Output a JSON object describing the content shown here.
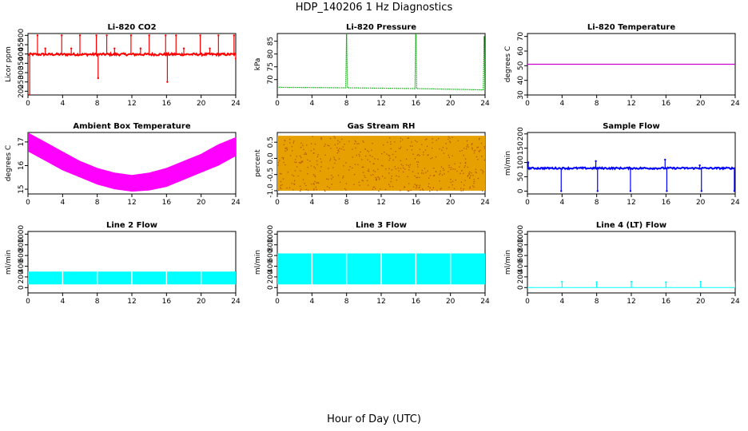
{
  "title": "HDP_140206  1 Hz Diagnostics",
  "xlabel": "Hour of Day (UTC)",
  "chart_data": [
    {
      "type": "line",
      "title": "Li-820 CO2",
      "ylabel": "Licor ppm",
      "color": "#ff0000",
      "xlim": [
        0,
        24
      ],
      "ylim": [
        180,
        510
      ],
      "xticks": [
        0,
        4,
        8,
        12,
        16,
        20,
        24
      ],
      "yticks": [
        200,
        250,
        300,
        350,
        400,
        450,
        500
      ],
      "baseline": 398,
      "noise": 12,
      "spikes": [
        {
          "x": 0.2,
          "y": 180
        },
        {
          "x": 1.1,
          "y": 500
        },
        {
          "x": 2.0,
          "y": 430
        },
        {
          "x": 3.9,
          "y": 500
        },
        {
          "x": 5.0,
          "y": 430
        },
        {
          "x": 6.0,
          "y": 500
        },
        {
          "x": 7.9,
          "y": 500
        },
        {
          "x": 8.1,
          "y": 270
        },
        {
          "x": 9.1,
          "y": 500
        },
        {
          "x": 10.0,
          "y": 430
        },
        {
          "x": 11.9,
          "y": 500
        },
        {
          "x": 13.0,
          "y": 430
        },
        {
          "x": 14.0,
          "y": 500
        },
        {
          "x": 15.9,
          "y": 500
        },
        {
          "x": 16.1,
          "y": 250
        },
        {
          "x": 17.1,
          "y": 500
        },
        {
          "x": 18.0,
          "y": 430
        },
        {
          "x": 19.9,
          "y": 500
        },
        {
          "x": 21.0,
          "y": 430
        },
        {
          "x": 22.0,
          "y": 500
        },
        {
          "x": 23.8,
          "y": 500
        },
        {
          "x": 24.0,
          "y": 375
        }
      ]
    },
    {
      "type": "line",
      "title": "Li-820 Pressure",
      "ylabel": "kPa",
      "color": "#00aa00",
      "xlim": [
        0,
        24
      ],
      "ylim": [
        64,
        88
      ],
      "xticks": [
        0,
        4,
        8,
        12,
        16,
        20,
        24
      ],
      "yticks": [
        70,
        75,
        80,
        85
      ],
      "series_x": [
        0,
        0.05,
        0.3,
        7.9,
        8.0,
        8.1,
        15.9,
        16.0,
        16.1,
        23.8,
        23.9,
        24.0
      ],
      "series_y": [
        82,
        67,
        67,
        66.8,
        88,
        66.8,
        66.5,
        88,
        66.5,
        66,
        87,
        66
      ]
    },
    {
      "type": "line",
      "title": "Li-820 Temperature",
      "ylabel": "degrees C",
      "color": "#cc00cc",
      "xlim": [
        0,
        24
      ],
      "ylim": [
        30,
        72
      ],
      "xticks": [
        0,
        4,
        8,
        12,
        16,
        20,
        24
      ],
      "yticks": [
        30,
        40,
        50,
        60,
        70
      ],
      "series_x": [
        0,
        24
      ],
      "series_y": [
        51,
        51
      ]
    },
    {
      "type": "area",
      "title": "Ambient Box Temperature",
      "ylabel": "degrees C",
      "color": "#ff00ff",
      "xlim": [
        0,
        24
      ],
      "ylim": [
        14.8,
        17.4
      ],
      "xticks": [
        0,
        4,
        8,
        12,
        16,
        20,
        24
      ],
      "yticks": [
        15.0,
        16.0,
        17.0
      ],
      "x": [
        0,
        2,
        4,
        6,
        8,
        10,
        12,
        14,
        16,
        18,
        20,
        22,
        24
      ],
      "upper": [
        17.4,
        17.0,
        16.6,
        16.2,
        15.9,
        15.7,
        15.6,
        15.7,
        15.9,
        16.2,
        16.5,
        16.9,
        17.2
      ],
      "lower": [
        16.6,
        16.2,
        15.8,
        15.5,
        15.2,
        15.0,
        14.9,
        14.95,
        15.1,
        15.4,
        15.7,
        16.0,
        16.4
      ]
    },
    {
      "type": "area",
      "title": "Gas Stream RH",
      "ylabel": "percent",
      "color": "#e6a000",
      "xlim": [
        0,
        24
      ],
      "ylim": [
        -1.1,
        0.8
      ],
      "xticks": [
        0,
        4,
        8,
        12,
        16,
        20,
        24
      ],
      "yticks": [
        -1.0,
        -0.5,
        0.0,
        0.5
      ],
      "x": [
        0,
        24
      ],
      "upper": [
        0.7,
        0.7
      ],
      "lower": [
        -1.0,
        -1.0
      ]
    },
    {
      "type": "line",
      "title": "Sample Flow",
      "ylabel": "ml/min",
      "color": "#0000ff",
      "xlim": [
        0,
        24
      ],
      "ylim": [
        -10,
        205
      ],
      "xticks": [
        0,
        4,
        8,
        12,
        16,
        20,
        24
      ],
      "yticks": [
        0,
        50,
        100,
        150,
        200
      ],
      "baseline": 80,
      "noise": 6,
      "spikes": [
        {
          "x": 0.1,
          "y": 100
        },
        {
          "x": 3.9,
          "y": 0
        },
        {
          "x": 7.9,
          "y": 105
        },
        {
          "x": 8.1,
          "y": 0
        },
        {
          "x": 11.9,
          "y": 0
        },
        {
          "x": 15.9,
          "y": 110
        },
        {
          "x": 16.1,
          "y": 0
        },
        {
          "x": 19.9,
          "y": 90
        },
        {
          "x": 20.1,
          "y": 0
        },
        {
          "x": 23.9,
          "y": 0
        }
      ]
    },
    {
      "type": "area",
      "title": "Line 2 Flow",
      "ylabel": "ml/min",
      "color": "#00ffff",
      "xlim": [
        0,
        24
      ],
      "ylim": [
        -100,
        1050
      ],
      "xticks": [
        0,
        4,
        8,
        12,
        16,
        20,
        24
      ],
      "yticks": [
        0,
        200,
        400,
        600,
        800,
        1000
      ],
      "x": [
        0,
        24
      ],
      "upper": [
        300,
        300
      ],
      "lower": [
        60,
        60
      ],
      "gaps": [
        4,
        8,
        12,
        16,
        20
      ]
    },
    {
      "type": "area",
      "title": "Line 3 Flow",
      "ylabel": "ml/min",
      "color": "#00ffff",
      "xlim": [
        0,
        24
      ],
      "ylim": [
        -100,
        1050
      ],
      "xticks": [
        0,
        4,
        8,
        12,
        16,
        20,
        24
      ],
      "yticks": [
        0,
        200,
        400,
        600,
        800,
        1000
      ],
      "x": [
        0,
        24
      ],
      "upper": [
        640,
        640
      ],
      "lower": [
        60,
        60
      ],
      "gaps": [
        4,
        8,
        12,
        16,
        20
      ]
    },
    {
      "type": "line",
      "title": "Line 4 (LT) Flow",
      "ylabel": "ml/min",
      "color": "#00ffff",
      "xlim": [
        0,
        24
      ],
      "ylim": [
        -100,
        1050
      ],
      "xticks": [
        0,
        4,
        8,
        12,
        16,
        20,
        24
      ],
      "yticks": [
        0,
        200,
        400,
        600,
        800,
        1000
      ],
      "baseline": 0,
      "noise": 0,
      "spikes": [
        {
          "x": 4,
          "y": 110
        },
        {
          "x": 8,
          "y": 100
        },
        {
          "x": 12,
          "y": 110
        },
        {
          "x": 16,
          "y": 100
        },
        {
          "x": 20,
          "y": 110
        },
        {
          "x": 24,
          "y": 100
        }
      ]
    }
  ]
}
